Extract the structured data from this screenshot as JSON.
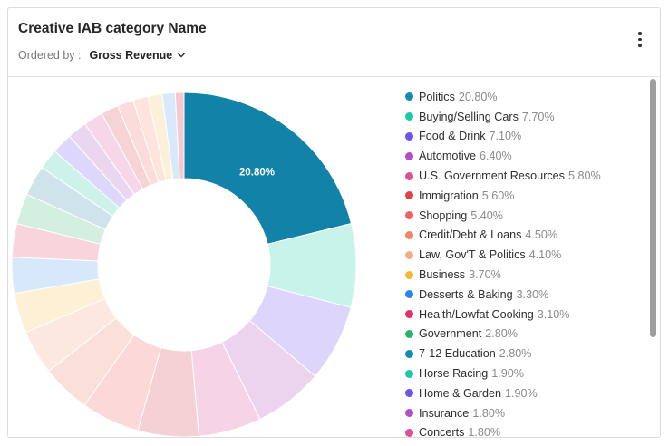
{
  "widget": {
    "title": "Creative IAB category Name",
    "ordered_by_label": "Ordered by :",
    "ordered_by_value": "Gross Revenue"
  },
  "chart_data": {
    "type": "pie",
    "center_label": "20.80%",
    "slices": [
      {
        "name": "Politics",
        "value": 20.8,
        "label": "20.80%",
        "color": "#1282a8"
      },
      {
        "name": "Buying/Selling Cars",
        "value": 7.7,
        "label": "7.70%",
        "color": "#c8f3ea"
      },
      {
        "name": "Food & Drink",
        "value": 7.1,
        "label": "7.10%",
        "color": "#ddd5fa"
      },
      {
        "name": "Automotive",
        "value": 6.4,
        "label": "6.40%",
        "color": "#ecd4ef"
      },
      {
        "name": "U.S. Government Resources",
        "value": 5.8,
        "label": "5.80%",
        "color": "#f7d3e8"
      },
      {
        "name": "Immigration",
        "value": 5.6,
        "label": "5.60%",
        "color": "#f3d1d4"
      },
      {
        "name": "Shopping",
        "value": 5.4,
        "label": "5.40%",
        "color": "#fbd9d9"
      },
      {
        "name": "Credit/Debt & Loans",
        "value": 4.5,
        "label": "4.50%",
        "color": "#fbe0da"
      },
      {
        "name": "Law, Gov'T & Politics",
        "value": 4.1,
        "label": "4.10%",
        "color": "#fde8e0"
      },
      {
        "name": "Business",
        "value": 3.7,
        "label": "3.70%",
        "color": "#fdf0d5"
      },
      {
        "name": "Desserts & Baking",
        "value": 3.3,
        "label": "3.30%",
        "color": "#d7e8fb"
      },
      {
        "name": "Health/Lowfat Cooking",
        "value": 3.1,
        "label": "3.10%",
        "color": "#f8d4dc"
      },
      {
        "name": "Government",
        "value": 2.8,
        "label": "2.80%",
        "color": "#d2efdf"
      },
      {
        "name": "7-12 Education",
        "value": 2.8,
        "label": "2.80%",
        "color": "#cfe3ea"
      },
      {
        "name": "Horse Racing",
        "value": 1.9,
        "label": "1.90%",
        "color": "#cdf2ea"
      },
      {
        "name": "Home & Garden",
        "value": 1.9,
        "label": "1.90%",
        "color": "#ddd8fb"
      },
      {
        "name": "Insurance",
        "value": 1.8,
        "label": "1.80%",
        "color": "#ebd6f0"
      },
      {
        "name": "Concerts",
        "value": 1.8,
        "label": "1.80%",
        "color": "#f7d6ea"
      },
      {
        "name": "",
        "value": 1.6,
        "label": "",
        "color": "#f6d4d6"
      },
      {
        "name": "",
        "value": 1.5,
        "label": "",
        "color": "#fbdcdb"
      },
      {
        "name": "",
        "value": 1.4,
        "label": "",
        "color": "#fde4dd"
      },
      {
        "name": "",
        "value": 1.3,
        "label": "",
        "color": "#fdf0da"
      },
      {
        "name": "",
        "value": 1.2,
        "label": "",
        "color": "#d9e9fb"
      },
      {
        "name": "",
        "value": 0.8,
        "label": "",
        "color": "#f6c8d0"
      }
    ],
    "legend_placement": "right"
  },
  "legend_colors": [
    "#138bb0",
    "#1dc8a9",
    "#6e50f3",
    "#b04fc9",
    "#e04e96",
    "#dd4349",
    "#f25f5e",
    "#f5836b",
    "#f6ad85",
    "#f8b82f",
    "#2a86f2",
    "#e53163",
    "#25b56b",
    "#138bb0",
    "#1dc8a9",
    "#6e50f3",
    "#b04fc9",
    "#e04e96"
  ]
}
